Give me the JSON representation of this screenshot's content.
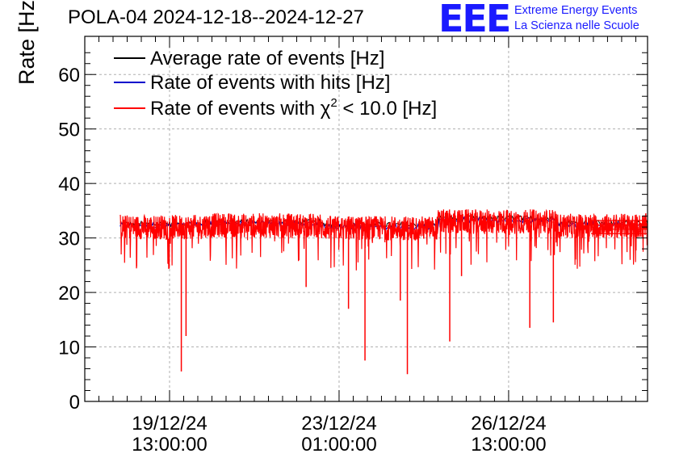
{
  "title": "POLA-04 2024-12-18--2024-12-27",
  "logo": {
    "letters": "EEE",
    "line1": "Extreme Energy Events",
    "line2": "La Scienza nelle Scuole"
  },
  "colors": {
    "average": "#000000",
    "hits": "#0000cc",
    "chi2": "#ff0000",
    "logo": "#1a1aff"
  },
  "chart_data": {
    "type": "line",
    "title": "POLA-04 2024-12-18--2024-12-27",
    "xlabel": "",
    "ylabel": "Rate [Hz]",
    "ylim": [
      0,
      67
    ],
    "xlim_hours": [
      0,
      239
    ],
    "yticks": [
      0,
      10,
      20,
      30,
      40,
      50,
      60
    ],
    "xticks": [
      {
        "hour": 36,
        "date": "19/12/24",
        "time": "13:00:00"
      },
      {
        "hour": 108,
        "date": "23/12/24",
        "time": "01:00:00"
      },
      {
        "hour": 180,
        "date": "26/12/24",
        "time": "13:00:00"
      }
    ],
    "grid": true,
    "legend_position": "top-left",
    "legend": {
      "average": "Average rate of events [Hz]",
      "hits": "Rate of events with hits [Hz]",
      "chi2_prefix": "Rate of events with ",
      "chi2_symbol": "χ",
      "chi2_sup": "2",
      "chi2_suffix": " < 10.0 [Hz]"
    },
    "series": [
      {
        "name": "Average rate of events [Hz]",
        "key": "average",
        "baseline": 32.5,
        "start_hour": 15
      },
      {
        "name": "Rate of events with hits [Hz]",
        "key": "hits",
        "baseline": 32.3,
        "start_hour": 15
      },
      {
        "name": "Rate of events with χ2 < 10.0 [Hz]",
        "key": "chi2",
        "baseline": 32.0,
        "start_hour": 15,
        "segments": [
          {
            "from_hour": 15,
            "to_hour": 50,
            "mean": 32.0
          },
          {
            "from_hour": 50,
            "to_hour": 100,
            "mean": 32.3
          },
          {
            "from_hour": 100,
            "to_hour": 150,
            "mean": 31.8
          },
          {
            "from_hour": 150,
            "to_hour": 200,
            "mean": 33.0
          },
          {
            "from_hour": 200,
            "to_hour": 239,
            "mean": 32.2
          }
        ],
        "dips": [
          {
            "hour": 41,
            "value": 5.5
          },
          {
            "hour": 43,
            "value": 12
          },
          {
            "hour": 94,
            "value": 21
          },
          {
            "hour": 112,
            "value": 17
          },
          {
            "hour": 119,
            "value": 7.5
          },
          {
            "hour": 134,
            "value": 18.5
          },
          {
            "hour": 137,
            "value": 5
          },
          {
            "hour": 155,
            "value": 11
          },
          {
            "hour": 160,
            "value": 23
          },
          {
            "hour": 189,
            "value": 13.5
          },
          {
            "hour": 199,
            "value": 14.5
          }
        ]
      }
    ]
  }
}
